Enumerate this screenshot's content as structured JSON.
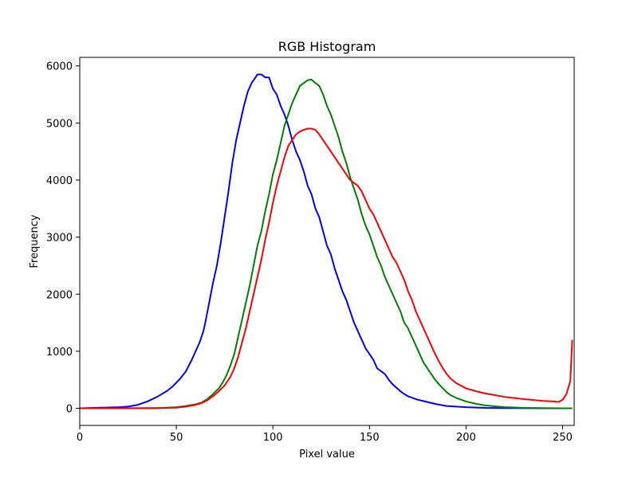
{
  "chart_data": {
    "type": "line",
    "title": "RGB Histogram",
    "xlabel": "Pixel value",
    "ylabel": "Frequency",
    "xlim": [
      0,
      256
    ],
    "ylim": [
      -300,
      6150
    ],
    "grid": false,
    "x_ticks": [
      0,
      50,
      100,
      150,
      200,
      250
    ],
    "y_ticks": [
      0,
      1000,
      2000,
      3000,
      4000,
      5000,
      6000
    ],
    "series": [
      {
        "color": "#0000ff",
        "points": [
          [
            0,
            0
          ],
          [
            10,
            10
          ],
          [
            20,
            20
          ],
          [
            25,
            30
          ],
          [
            30,
            60
          ],
          [
            35,
            120
          ],
          [
            40,
            200
          ],
          [
            45,
            300
          ],
          [
            48,
            380
          ],
          [
            50,
            450
          ],
          [
            52,
            520
          ],
          [
            55,
            650
          ],
          [
            58,
            850
          ],
          [
            60,
            1000
          ],
          [
            62,
            1150
          ],
          [
            64,
            1350
          ],
          [
            65,
            1500
          ],
          [
            67,
            1850
          ],
          [
            69,
            2200
          ],
          [
            71,
            2500
          ],
          [
            73,
            2900
          ],
          [
            75,
            3350
          ],
          [
            77,
            3800
          ],
          [
            79,
            4300
          ],
          [
            81,
            4700
          ],
          [
            83,
            5000
          ],
          [
            85,
            5300
          ],
          [
            87,
            5550
          ],
          [
            89,
            5700
          ],
          [
            91,
            5800
          ],
          [
            92,
            5850
          ],
          [
            94,
            5850
          ],
          [
            96,
            5800
          ],
          [
            98,
            5800
          ],
          [
            100,
            5600
          ],
          [
            102,
            5500
          ],
          [
            104,
            5300
          ],
          [
            106,
            5150
          ],
          [
            108,
            4950
          ],
          [
            110,
            4700
          ],
          [
            112,
            4500
          ],
          [
            114,
            4350
          ],
          [
            116,
            4150
          ],
          [
            118,
            3900
          ],
          [
            120,
            3750
          ],
          [
            122,
            3500
          ],
          [
            124,
            3350
          ],
          [
            126,
            3100
          ],
          [
            128,
            2850
          ],
          [
            130,
            2700
          ],
          [
            132,
            2450
          ],
          [
            134,
            2250
          ],
          [
            136,
            2050
          ],
          [
            138,
            1900
          ],
          [
            140,
            1700
          ],
          [
            142,
            1500
          ],
          [
            144,
            1350
          ],
          [
            146,
            1200
          ],
          [
            148,
            1050
          ],
          [
            150,
            950
          ],
          [
            152,
            850
          ],
          [
            154,
            700
          ],
          [
            156,
            650
          ],
          [
            158,
            600
          ],
          [
            160,
            500
          ],
          [
            162,
            420
          ],
          [
            164,
            360
          ],
          [
            166,
            300
          ],
          [
            168,
            250
          ],
          [
            170,
            210
          ],
          [
            175,
            150
          ],
          [
            180,
            110
          ],
          [
            185,
            70
          ],
          [
            190,
            40
          ],
          [
            200,
            20
          ],
          [
            210,
            8
          ],
          [
            220,
            4
          ],
          [
            230,
            2
          ],
          [
            240,
            1
          ],
          [
            250,
            1
          ],
          [
            255,
            0
          ]
        ]
      },
      {
        "color": "#008000",
        "points": [
          [
            0,
            0
          ],
          [
            20,
            0
          ],
          [
            40,
            0
          ],
          [
            50,
            20
          ],
          [
            55,
            40
          ],
          [
            60,
            70
          ],
          [
            63,
            100
          ],
          [
            66,
            160
          ],
          [
            69,
            250
          ],
          [
            72,
            350
          ],
          [
            74,
            450
          ],
          [
            76,
            580
          ],
          [
            78,
            750
          ],
          [
            80,
            950
          ],
          [
            82,
            1250
          ],
          [
            84,
            1550
          ],
          [
            86,
            1850
          ],
          [
            88,
            2150
          ],
          [
            90,
            2500
          ],
          [
            92,
            2850
          ],
          [
            94,
            3100
          ],
          [
            96,
            3450
          ],
          [
            98,
            3750
          ],
          [
            100,
            4100
          ],
          [
            102,
            4350
          ],
          [
            104,
            4650
          ],
          [
            106,
            4950
          ],
          [
            108,
            5150
          ],
          [
            110,
            5350
          ],
          [
            112,
            5500
          ],
          [
            114,
            5650
          ],
          [
            116,
            5700
          ],
          [
            118,
            5750
          ],
          [
            120,
            5760
          ],
          [
            122,
            5700
          ],
          [
            124,
            5650
          ],
          [
            126,
            5500
          ],
          [
            128,
            5300
          ],
          [
            130,
            5150
          ],
          [
            132,
            4950
          ],
          [
            134,
            4750
          ],
          [
            136,
            4500
          ],
          [
            138,
            4300
          ],
          [
            140,
            4050
          ],
          [
            142,
            3850
          ],
          [
            144,
            3650
          ],
          [
            146,
            3400
          ],
          [
            148,
            3200
          ],
          [
            150,
            3050
          ],
          [
            152,
            2850
          ],
          [
            154,
            2650
          ],
          [
            156,
            2500
          ],
          [
            158,
            2300
          ],
          [
            160,
            2150
          ],
          [
            162,
            2000
          ],
          [
            164,
            1850
          ],
          [
            166,
            1700
          ],
          [
            168,
            1500
          ],
          [
            170,
            1400
          ],
          [
            172,
            1250
          ],
          [
            174,
            1100
          ],
          [
            176,
            950
          ],
          [
            178,
            800
          ],
          [
            180,
            700
          ],
          [
            182,
            600
          ],
          [
            184,
            500
          ],
          [
            186,
            420
          ],
          [
            188,
            350
          ],
          [
            190,
            280
          ],
          [
            192,
            230
          ],
          [
            195,
            180
          ],
          [
            200,
            120
          ],
          [
            205,
            80
          ],
          [
            210,
            50
          ],
          [
            220,
            20
          ],
          [
            230,
            8
          ],
          [
            240,
            3
          ],
          [
            250,
            1
          ],
          [
            255,
            0
          ]
        ]
      },
      {
        "color": "#ff0000",
        "points": [
          [
            0,
            0
          ],
          [
            20,
            0
          ],
          [
            40,
            5
          ],
          [
            50,
            10
          ],
          [
            55,
            30
          ],
          [
            60,
            60
          ],
          [
            63,
            90
          ],
          [
            66,
            140
          ],
          [
            69,
            210
          ],
          [
            72,
            300
          ],
          [
            75,
            400
          ],
          [
            78,
            550
          ],
          [
            80,
            700
          ],
          [
            82,
            900
          ],
          [
            84,
            1150
          ],
          [
            86,
            1400
          ],
          [
            88,
            1700
          ],
          [
            90,
            2000
          ],
          [
            92,
            2300
          ],
          [
            94,
            2600
          ],
          [
            96,
            2950
          ],
          [
            98,
            3250
          ],
          [
            100,
            3600
          ],
          [
            102,
            3900
          ],
          [
            104,
            4150
          ],
          [
            106,
            4400
          ],
          [
            108,
            4600
          ],
          [
            110,
            4700
          ],
          [
            112,
            4800
          ],
          [
            114,
            4850
          ],
          [
            116,
            4880
          ],
          [
            118,
            4900
          ],
          [
            120,
            4900
          ],
          [
            122,
            4880
          ],
          [
            124,
            4800
          ],
          [
            126,
            4700
          ],
          [
            128,
            4600
          ],
          [
            130,
            4500
          ],
          [
            132,
            4400
          ],
          [
            134,
            4300
          ],
          [
            136,
            4200
          ],
          [
            138,
            4100
          ],
          [
            140,
            4000
          ],
          [
            142,
            3950
          ],
          [
            144,
            3900
          ],
          [
            146,
            3800
          ],
          [
            148,
            3650
          ],
          [
            150,
            3500
          ],
          [
            152,
            3400
          ],
          [
            154,
            3250
          ],
          [
            156,
            3100
          ],
          [
            158,
            2950
          ],
          [
            160,
            2800
          ],
          [
            162,
            2650
          ],
          [
            164,
            2550
          ],
          [
            166,
            2400
          ],
          [
            168,
            2250
          ],
          [
            170,
            2050
          ],
          [
            172,
            1900
          ],
          [
            174,
            1700
          ],
          [
            176,
            1550
          ],
          [
            178,
            1400
          ],
          [
            180,
            1250
          ],
          [
            182,
            1100
          ],
          [
            184,
            950
          ],
          [
            186,
            820
          ],
          [
            188,
            700
          ],
          [
            190,
            600
          ],
          [
            192,
            520
          ],
          [
            195,
            440
          ],
          [
            200,
            350
          ],
          [
            205,
            300
          ],
          [
            210,
            260
          ],
          [
            215,
            230
          ],
          [
            220,
            200
          ],
          [
            225,
            180
          ],
          [
            230,
            160
          ],
          [
            235,
            145
          ],
          [
            240,
            130
          ],
          [
            245,
            120
          ],
          [
            248,
            110
          ],
          [
            250,
            150
          ],
          [
            252,
            250
          ],
          [
            254,
            480
          ],
          [
            255,
            1200
          ]
        ]
      }
    ]
  }
}
